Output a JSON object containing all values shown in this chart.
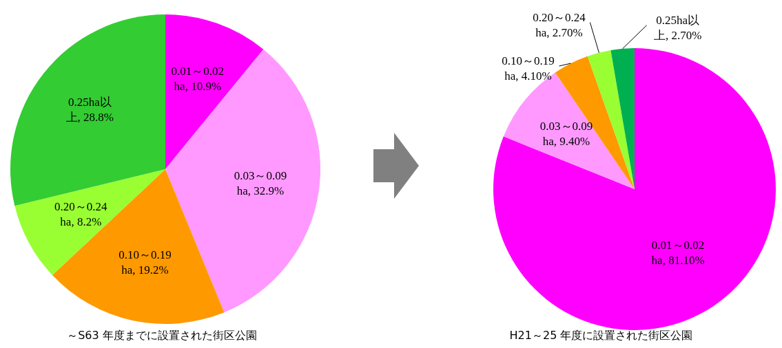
{
  "chart_data": [
    {
      "type": "pie",
      "title": "～S63 年度までに設置された街区公園",
      "categories": [
        "0.01～0.02ha",
        "0.03～0.09ha",
        "0.10～0.19ha",
        "0.20～0.24ha",
        "0.25ha以上"
      ],
      "values": [
        10.9,
        32.9,
        19.2,
        8.2,
        28.8
      ],
      "value_labels": [
        "10.9%",
        "32.9%",
        "19.2%",
        "8.2%",
        "28.8%"
      ],
      "colors": [
        "#ff00ff",
        "#ff99ff",
        "#ff9900",
        "#99ff33",
        "#33cc33"
      ],
      "legend": false
    },
    {
      "type": "pie",
      "title": "H21～25 年度に設置された街区公園",
      "categories": [
        "0.01～0.02ha",
        "0.03～0.09ha",
        "0.10～0.19ha",
        "0.20～0.24ha",
        "0.25ha以上"
      ],
      "values": [
        81.1,
        9.4,
        4.1,
        2.7,
        2.7
      ],
      "value_labels": [
        "81.10%",
        "9.40%",
        "4.10%",
        "2.70%",
        "2.70%"
      ],
      "colors": [
        "#ff00ff",
        "#ff99ff",
        "#ff9900",
        "#99ff33",
        "#00b050"
      ],
      "legend": false
    }
  ]
}
